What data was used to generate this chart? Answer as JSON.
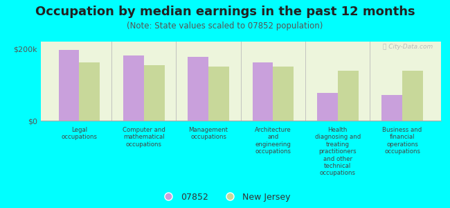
{
  "title": "Occupation by median earnings in the past 12 months",
  "subtitle": "(Note: State values scaled to 07852 population)",
  "categories": [
    "Legal\noccupations",
    "Computer and\nmathematical\noccupations",
    "Management\noccupations",
    "Architecture\nand\nengineering\noccupations",
    "Health\ndiagnosing and\ntreating\npractitioners\nand other\ntechnical\noccupations",
    "Business and\nfinancial\noperations\noccupations"
  ],
  "values_07852": [
    196000,
    182000,
    178000,
    163000,
    78000,
    72000
  ],
  "values_nj": [
    163000,
    155000,
    150000,
    150000,
    138000,
    138000
  ],
  "color_07852": "#c9a0dc",
  "color_nj": "#c8d89a",
  "background_color": "#00ffff",
  "plot_bg_color": "#edf5dc",
  "yticks": [
    0,
    200000
  ],
  "ytick_labels": [
    "$0",
    "$200k"
  ],
  "ylabel_fontsize": 8,
  "title_fontsize": 13,
  "subtitle_fontsize": 8.5,
  "legend_label_07852": "07852",
  "legend_label_nj": "New Jersey",
  "watermark": "Ⓜ City-Data.com"
}
